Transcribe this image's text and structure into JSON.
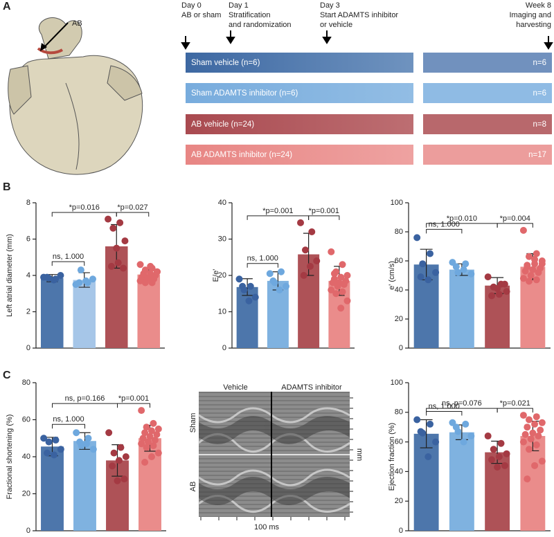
{
  "panel_labels": [
    "A",
    "B",
    "C"
  ],
  "heart_label": "AB",
  "timeline": {
    "events": [
      {
        "day": "Day 0",
        "lines": [
          "AB or sham"
        ]
      },
      {
        "day": "Day 1",
        "lines": [
          "Stratification",
          "and randomization"
        ]
      },
      {
        "day": "Day 3",
        "lines": [
          "Start ADAMTS inhibitor",
          "or vehicle"
        ]
      },
      {
        "day": "Week 8",
        "lines": [
          "Imaging and",
          "harvesting"
        ]
      }
    ],
    "groups": [
      {
        "label": "Sham vehicle (n=6)",
        "final": "n=6"
      },
      {
        "label": "Sham ADAMTS inhibitor (n=6)",
        "final": "n=6"
      },
      {
        "label": "AB vehicle (n=24)",
        "final": "n=8"
      },
      {
        "label": "AB ADAMTS inhibitor (n=24)",
        "final": "n=17"
      }
    ]
  },
  "echo": {
    "columns": [
      "Vehicle",
      "ADAMTS inhibitor"
    ],
    "rows": [
      "Sham",
      "AB"
    ],
    "y_unit": "mm",
    "scale_bar": "100 ms"
  },
  "chart_data": [
    {
      "type": "bar",
      "y_label": "Left atrial diameter (mm)",
      "categories": [
        null,
        null,
        null,
        null
      ],
      "values": [
        3.85,
        3.75,
        5.6,
        4.05
      ],
      "errors": [
        0.2,
        0.4,
        1.2,
        0.35
      ],
      "points": [
        [
          3.9,
          3.8,
          3.85,
          4.0,
          3.75,
          3.9
        ],
        [
          3.5,
          3.6,
          4.3,
          3.8,
          3.7,
          3.6
        ],
        [
          7.1,
          6.9,
          6.6,
          5.9,
          4.7,
          4.5,
          4.4,
          5.5
        ],
        [
          4.6,
          4.4,
          4.3,
          4.2,
          4.1,
          4.0,
          4.0,
          3.9,
          3.9,
          3.8,
          3.8,
          3.7,
          3.6,
          3.6,
          4.2,
          4.5,
          4.1
        ]
      ],
      "colors": [
        "#4d76ab",
        "#a6c6e8",
        "#ae5257",
        "#ea8c8b"
      ],
      "point_colors": [
        "#3a62a0",
        "#6ea8de",
        "#a43a43",
        "#e0686b"
      ],
      "ylim": [
        0,
        8
      ],
      "yticks": [
        0,
        2,
        4,
        6,
        8
      ],
      "annotations": [
        "ns, 1.000",
        "*p=0.016",
        "*p=0.027"
      ]
    },
    {
      "type": "bar",
      "y_label": "E/e'",
      "categories": [
        null,
        null,
        null,
        null
      ],
      "values": [
        16.8,
        18.5,
        25.8,
        18.5
      ],
      "errors": [
        2.3,
        2.5,
        5.8,
        4.0
      ],
      "points": [
        [
          19,
          17,
          16,
          14,
          13,
          17
        ],
        [
          20.5,
          21,
          18,
          17,
          16,
          18.5
        ],
        [
          34.5,
          32,
          27,
          24,
          22.5,
          20
        ],
        [
          26.5,
          23,
          21,
          20,
          19.5,
          19,
          18.5,
          18,
          18,
          17.5,
          17,
          16,
          15.5,
          15,
          13,
          11,
          20.5
        ]
      ],
      "colors": [
        "#4d76ab",
        "#7fb2e0",
        "#ae5257",
        "#ea8c8b"
      ],
      "point_colors": [
        "#3a62a0",
        "#6ea8de",
        "#a43a43",
        "#e0686b"
      ],
      "ylim": [
        0,
        40
      ],
      "yticks": [
        0,
        10,
        20,
        30,
        40
      ],
      "annotations": [
        "ns, 1.000",
        "*p=0.001",
        "*p=0.001"
      ]
    },
    {
      "type": "bar",
      "y_label": "e' (cm/s)",
      "categories": [
        null,
        null,
        null,
        null
      ],
      "values": [
        57.5,
        54,
        43,
        56
      ],
      "errors": [
        10.5,
        4,
        5.5,
        9
      ],
      "points": [
        [
          76,
          65,
          58,
          52,
          47,
          49
        ],
        [
          59,
          58,
          52,
          51,
          54,
          56
        ],
        [
          49,
          44,
          42,
          39,
          37,
          36,
          44,
          41
        ],
        [
          81,
          65,
          63,
          60,
          58,
          56,
          55,
          54,
          53,
          52,
          50,
          48,
          47,
          46,
          58,
          61,
          57
        ]
      ],
      "colors": [
        "#4d76ab",
        "#7fb2e0",
        "#ae5257",
        "#ea8c8b"
      ],
      "point_colors": [
        "#3a62a0",
        "#6ea8de",
        "#a43a43",
        "#e0686b"
      ],
      "ylim": [
        0,
        100
      ],
      "yticks": [
        0,
        20,
        40,
        60,
        80,
        100
      ],
      "annotations": [
        "ns, 1.000",
        "*p=0.010",
        "*p=0.004"
      ]
    },
    {
      "type": "bar",
      "y_label": "Fractional shortening (%)",
      "categories": [
        null,
        null,
        null,
        null
      ],
      "values": [
        45.5,
        48.5,
        38,
        50
      ],
      "errors": [
        5,
        4.5,
        8.5,
        7
      ],
      "points": [
        [
          50,
          49,
          48,
          44,
          41,
          42
        ],
        [
          53,
          50,
          46,
          44,
          47,
          48
        ],
        [
          53,
          45,
          42,
          40,
          38,
          35,
          28,
          27
        ],
        [
          65,
          58,
          56,
          55,
          54,
          53,
          52,
          51,
          50,
          49,
          48,
          47,
          46,
          45,
          42,
          40,
          37
        ]
      ],
      "colors": [
        "#4d76ab",
        "#7fb2e0",
        "#ae5257",
        "#ea8c8b"
      ],
      "point_colors": [
        "#3a62a0",
        "#6ea8de",
        "#a43a43",
        "#e0686b"
      ],
      "ylim": [
        0,
        80
      ],
      "yticks": [
        0,
        20,
        40,
        60,
        80
      ],
      "annotations": [
        "ns, 1.000",
        "ns, p=0.166",
        "*p=0.001"
      ]
    },
    {
      "type": "bar",
      "y_label": "Ejection fraction (%)",
      "categories": [
        null,
        null,
        null,
        null
      ],
      "values": [
        65.5,
        66.5,
        53,
        64
      ],
      "errors": [
        9.5,
        5,
        7.5,
        10
      ],
      "points": [
        [
          75,
          72,
          66,
          60,
          50,
          67
        ],
        [
          73,
          72,
          67,
          64,
          60,
          70
        ],
        [
          64,
          59,
          55,
          52,
          50,
          48,
          44,
          43
        ],
        [
          78,
          77,
          75,
          73,
          72,
          70,
          68,
          66,
          65,
          64,
          62,
          60,
          58,
          55,
          47,
          44,
          35
        ]
      ],
      "colors": [
        "#4d76ab",
        "#7fb2e0",
        "#ae5257",
        "#ea8c8b"
      ],
      "point_colors": [
        "#3a62a0",
        "#6ea8de",
        "#a43a43",
        "#e0686b"
      ],
      "ylim": [
        0,
        100
      ],
      "yticks": [
        0,
        20,
        40,
        60,
        80,
        100
      ],
      "annotations": [
        "ns, 1.000",
        "ns, p=0.076",
        "*p=0.021"
      ]
    }
  ]
}
